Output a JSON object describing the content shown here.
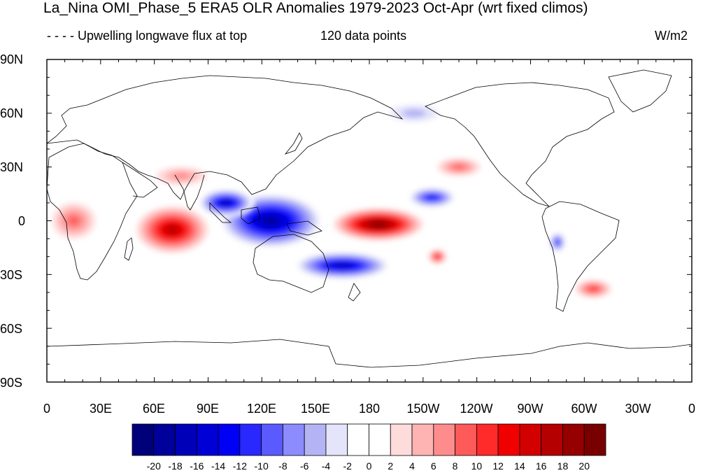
{
  "title": "La_Nina OMI_Phase_5 ERA5 OLR Anomalies 1979-2023 Oct-Apr (wrt fixed climos)",
  "subtitle_left": "- - - - Upwelling longwave flux at top",
  "subtitle_center": "120 data points",
  "units": "W/m2",
  "lat_labels": [
    "90N",
    "60N",
    "30N",
    "0",
    "30S",
    "60S",
    "90S"
  ],
  "lon_labels": [
    "0",
    "30E",
    "60E",
    "90E",
    "120E",
    "150E",
    "180",
    "150W",
    "120W",
    "90W",
    "60W",
    "30W",
    "0"
  ],
  "colorbar": {
    "labels": [
      "-20",
      "-18",
      "-16",
      "-14",
      "-12",
      "-10",
      "-8",
      "-6",
      "-4",
      "-2",
      "0",
      "2",
      "4",
      "6",
      "8",
      "10",
      "12",
      "14",
      "16",
      "18",
      "20"
    ],
    "colors": [
      "#00007a",
      "#00009a",
      "#0000b8",
      "#0000d6",
      "#0000f5",
      "#2828ff",
      "#5a5aff",
      "#8c8cff",
      "#b4b4f5",
      "#e4e4fa",
      "#ffffff",
      "#ffffff",
      "#ffdcdc",
      "#ffb4b4",
      "#ff8c8c",
      "#ff5a5a",
      "#ff2a2a",
      "#f00000",
      "#d20000",
      "#b40000",
      "#960000",
      "#780000"
    ]
  },
  "map": {
    "projection": "cylindrical-equidistant",
    "lon_range": [
      0,
      360
    ],
    "lat_range": [
      -90,
      90
    ],
    "anomaly_regions": [
      {
        "name": "Indian Ocean positive",
        "lon": 70,
        "lat": -5,
        "rx": 20,
        "ry": 13,
        "value": 16
      },
      {
        "name": "Central Pacific positive",
        "lon": 185,
        "lat": -2,
        "rx": 25,
        "ry": 9,
        "value": 20
      },
      {
        "name": "Maritime Continent negative",
        "lon": 125,
        "lat": 0,
        "rx": 30,
        "ry": 16,
        "value": -20
      },
      {
        "name": "SPCZ negative",
        "lon": 165,
        "lat": -25,
        "rx": 28,
        "ry": 8,
        "value": -18
      },
      {
        "name": "Bay of Bengal negative",
        "lon": 100,
        "lat": 10,
        "rx": 16,
        "ry": 8,
        "value": -18
      },
      {
        "name": "NE Pacific negative",
        "lon": 215,
        "lat": 13,
        "rx": 14,
        "ry": 6,
        "value": -14
      },
      {
        "name": "Africa positive",
        "lon": 15,
        "lat": 0,
        "rx": 12,
        "ry": 10,
        "value": 8
      },
      {
        "name": "Arabia positive",
        "lon": 75,
        "lat": 25,
        "rx": 14,
        "ry": 5,
        "value": 6
      },
      {
        "name": "SE Pacific positive",
        "lon": 218,
        "lat": -20,
        "rx": 5,
        "ry": 4,
        "value": 12
      },
      {
        "name": "South Atlantic positive",
        "lon": 305,
        "lat": -38,
        "rx": 10,
        "ry": 5,
        "value": 10
      },
      {
        "name": "North Pacific negative",
        "lon": 205,
        "lat": 60,
        "rx": 20,
        "ry": 7,
        "value": -6
      },
      {
        "name": "Western US positive",
        "lon": 230,
        "lat": 30,
        "rx": 12,
        "ry": 5,
        "value": 8
      },
      {
        "name": "South America negative",
        "lon": 285,
        "lat": -12,
        "rx": 5,
        "ry": 6,
        "value": -12
      }
    ]
  }
}
